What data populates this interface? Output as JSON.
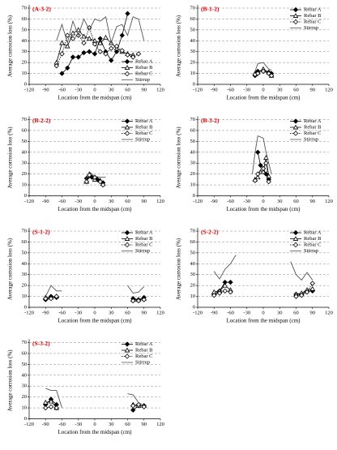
{
  "chart_data": [
    {
      "type": "line",
      "title": "(A-3-2)",
      "xlabel": "Location from the midspan (cm)",
      "ylabel": "Average corrosion loss (%)",
      "xlim": [
        -120,
        120
      ],
      "xticks": [
        -120,
        -90,
        -60,
        -30,
        0,
        30,
        60,
        90,
        120
      ],
      "ylim": [
        0,
        70
      ],
      "yticks": [
        0,
        10,
        20,
        30,
        40,
        50,
        60,
        70
      ],
      "grid": true,
      "legend": "lower right",
      "series": [
        {
          "name": "Rebar A",
          "color": "#000000",
          "marker": "filled-diamond",
          "x": [
            -60,
            -50,
            -40,
            -30,
            -20,
            -10,
            0,
            10,
            20,
            30,
            40,
            50,
            60
          ],
          "values": [
            10,
            15,
            25,
            25,
            29,
            30,
            28,
            42,
            30,
            22,
            30,
            45,
            65
          ]
        },
        {
          "name": "Rebar B",
          "color": "#000000",
          "marker": "open-triangle",
          "x": [
            -70,
            -60,
            -50,
            -40,
            -30,
            -20,
            -10,
            0,
            10,
            20,
            30,
            40,
            50,
            60,
            70
          ],
          "values": [
            20,
            38,
            35,
            47,
            50,
            44,
            42,
            40,
            38,
            43,
            38,
            33,
            30,
            28,
            27
          ]
        },
        {
          "name": "Rebar C",
          "color": "#000000",
          "marker": "open-diamond",
          "x": [
            -70,
            -60,
            -50,
            -40,
            -30,
            -20,
            -10,
            0,
            10,
            20,
            30,
            40,
            50,
            60,
            70,
            80
          ],
          "values": [
            17,
            28,
            45,
            42,
            45,
            38,
            52,
            37,
            30,
            28,
            33,
            35,
            31,
            27,
            25,
            28
          ]
        },
        {
          "name": "Stirrup",
          "color": "#555555",
          "marker": "none",
          "x": [
            -70,
            -60,
            -50,
            -40,
            -30,
            -20,
            -10,
            0,
            10,
            20,
            30,
            40,
            50,
            60,
            70,
            80,
            90
          ],
          "values": [
            40,
            55,
            38,
            58,
            45,
            60,
            50,
            60,
            58,
            62,
            38,
            53,
            55,
            45,
            62,
            60,
            40
          ]
        }
      ]
    },
    {
      "type": "line",
      "title": "(B-1-2)",
      "xlabel": "Location from the midspan (cm)",
      "ylabel": "Average corrosion loss (%)",
      "xlim": [
        -120,
        120
      ],
      "xticks": [
        -120,
        -90,
        -60,
        -30,
        0,
        30,
        60,
        90,
        120
      ],
      "ylim": [
        0,
        70
      ],
      "yticks": [
        0,
        10,
        20,
        30,
        40,
        50,
        60,
        70
      ],
      "grid": true,
      "legend": "upper right",
      "series": [
        {
          "name": "Rebar A",
          "color": "#000000",
          "marker": "filled-diamond",
          "x": [
            -15,
            -10,
            0,
            10,
            15
          ],
          "values": [
            8,
            12,
            12,
            11,
            10
          ]
        },
        {
          "name": "Rebar B",
          "color": "#000000",
          "marker": "open-triangle",
          "x": [
            -15,
            -10,
            0,
            10,
            15
          ],
          "values": [
            10,
            11,
            14,
            11,
            8
          ]
        },
        {
          "name": "Rebar C",
          "color": "#000000",
          "marker": "open-diamond",
          "x": [
            -15,
            -10,
            0,
            10,
            15
          ],
          "values": [
            9,
            10,
            12,
            10,
            8
          ]
        },
        {
          "name": "Stirrup",
          "color": "#555555",
          "marker": "none",
          "x": [
            -15,
            -10,
            0,
            10,
            15
          ],
          "values": [
            12,
            19,
            20,
            14,
            13
          ]
        }
      ]
    },
    {
      "type": "line",
      "title": "(B-2-2)",
      "xlabel": "Location from the midspan (cm)",
      "ylabel": "Average corrosion loss (%)",
      "xlim": [
        -120,
        120
      ],
      "xticks": [
        -120,
        -90,
        -60,
        -30,
        0,
        30,
        60,
        90,
        120
      ],
      "ylim": [
        0,
        70
      ],
      "yticks": [
        0,
        10,
        20,
        30,
        40,
        50,
        60,
        70
      ],
      "grid": true,
      "legend": "upper right",
      "series": [
        {
          "name": "Rebar A",
          "color": "#000000",
          "marker": "filled-diamond",
          "x": [
            -15,
            -5,
            5,
            15
          ],
          "values": [
            16,
            17,
            15,
            12
          ]
        },
        {
          "name": "Rebar B",
          "color": "#000000",
          "marker": "open-triangle",
          "x": [
            -15,
            -10,
            0,
            10,
            15
          ],
          "values": [
            13,
            20,
            15,
            14,
            11
          ]
        },
        {
          "name": "Rebar C",
          "color": "#000000",
          "marker": "open-diamond",
          "x": [
            -15,
            -10,
            0,
            10,
            15
          ],
          "values": [
            13,
            19,
            17,
            13,
            10
          ]
        },
        {
          "name": "Stirrup",
          "color": "#555555",
          "marker": "none",
          "x": [
            -20,
            -10,
            0,
            10,
            20
          ],
          "values": [
            11,
            22,
            18,
            17,
            17
          ]
        }
      ]
    },
    {
      "type": "line",
      "title": "(B-3-2)",
      "xlabel": "Location from the midspan (cm)",
      "ylabel": "Average corrosion loss (%)",
      "xlim": [
        -120,
        120
      ],
      "xticks": [
        -120,
        -90,
        -60,
        -30,
        0,
        30,
        60,
        90,
        120
      ],
      "ylim": [
        0,
        70
      ],
      "yticks": [
        0,
        10,
        20,
        30,
        40,
        50,
        60,
        70
      ],
      "grid": true,
      "legend": "upper right",
      "series": [
        {
          "name": "Rebar A",
          "color": "#000000",
          "marker": "filled-diamond",
          "x": [
            -10,
            -5,
            0,
            5,
            10
          ],
          "values": [
            40,
            28,
            25,
            20,
            15
          ]
        },
        {
          "name": "Rebar B",
          "color": "#000000",
          "marker": "open-triangle",
          "x": [
            -15,
            -10,
            -5,
            0,
            5,
            10
          ],
          "values": [
            15,
            17,
            22,
            22,
            35,
            18
          ]
        },
        {
          "name": "Rebar C",
          "color": "#000000",
          "marker": "open-diamond",
          "x": [
            -15,
            -10,
            0,
            5,
            10
          ],
          "values": [
            14,
            20,
            25,
            30,
            13
          ]
        },
        {
          "name": "Stirrup",
          "color": "#555555",
          "marker": "none",
          "x": [
            -20,
            -15,
            -10,
            0,
            5,
            10,
            15
          ],
          "values": [
            20,
            40,
            55,
            53,
            40,
            30,
            20
          ]
        }
      ]
    },
    {
      "type": "line",
      "title": "(S-1-2)",
      "xlabel": "Location from the midspan (cm)",
      "ylabel": "Average corrosion loss (%)",
      "xlim": [
        -120,
        120
      ],
      "xticks": [
        -120,
        -90,
        -60,
        -30,
        0,
        30,
        60,
        90,
        120
      ],
      "ylim": [
        0,
        70
      ],
      "yticks": [
        0,
        10,
        20,
        30,
        40,
        50,
        60,
        70
      ],
      "grid": true,
      "legend": "upper right",
      "series": [
        {
          "name": "Rebar A",
          "color": "#000000",
          "marker": "filled-diamond",
          "x": [
            -90,
            -80,
            -70,
            0,
            70,
            80,
            90
          ],
          "values": [
            7,
            10,
            9,
            null,
            8,
            7,
            9
          ]
        },
        {
          "name": "Rebar B",
          "color": "#000000",
          "marker": "open-triangle",
          "x": [
            -90,
            -80,
            -70,
            0,
            70,
            80,
            90
          ],
          "values": [
            9,
            9,
            10,
            null,
            7,
            7,
            8
          ]
        },
        {
          "name": "Rebar C",
          "color": "#000000",
          "marker": "open-diamond",
          "x": [
            -90,
            -80,
            -70,
            0,
            70,
            80,
            90
          ],
          "values": [
            8,
            8,
            10,
            null,
            6,
            6,
            7
          ]
        },
        {
          "name": "Stirrup",
          "color": "#555555",
          "marker": "none",
          "x": [
            -90,
            -80,
            -70,
            -60,
            0,
            60,
            70,
            80,
            90
          ],
          "values": [
            10,
            20,
            15,
            15,
            null,
            20,
            13,
            14,
            19
          ]
        }
      ]
    },
    {
      "type": "line",
      "title": "(S-2-2)",
      "xlabel": "Location from the midspan (cm)",
      "ylabel": "Average corrosion loss (%)",
      "xlim": [
        -120,
        120
      ],
      "xticks": [
        -120,
        -90,
        -60,
        -30,
        0,
        30,
        60,
        90,
        120
      ],
      "ylim": [
        0,
        70
      ],
      "yticks": [
        0,
        10,
        20,
        30,
        40,
        50,
        60,
        70
      ],
      "grid": true,
      "legend": "upper right",
      "series": [
        {
          "name": "Rebar A",
          "color": "#000000",
          "marker": "filled-diamond",
          "x": [
            -90,
            -80,
            -70,
            -60,
            0,
            60,
            70,
            80,
            90
          ],
          "values": [
            12,
            15,
            23,
            23,
            null,
            12,
            12,
            15,
            15
          ]
        },
        {
          "name": "Rebar B",
          "color": "#000000",
          "marker": "open-triangle",
          "x": [
            -90,
            -80,
            -70,
            -60,
            0,
            60,
            70,
            80,
            90
          ],
          "values": [
            14,
            15,
            20,
            16,
            null,
            12,
            13,
            16,
            17
          ]
        },
        {
          "name": "Rebar C",
          "color": "#000000",
          "marker": "open-diamond",
          "x": [
            -90,
            -80,
            -70,
            -60,
            0,
            60,
            70,
            80,
            90
          ],
          "values": [
            11,
            13,
            15,
            14,
            null,
            10,
            11,
            14,
            22
          ]
        },
        {
          "name": "Stirrup",
          "color": "#555555",
          "marker": "none",
          "x": [
            -90,
            -80,
            -70,
            -60,
            -50,
            0,
            50,
            60,
            70,
            80,
            90
          ],
          "values": [
            33,
            26,
            35,
            40,
            48,
            null,
            42,
            30,
            25,
            32,
            25
          ]
        }
      ]
    },
    {
      "type": "line",
      "title": "(S-3-2)",
      "xlabel": "Location from the midspan (cm)",
      "ylabel": "Average corrosion loss (%)",
      "xlim": [
        -120,
        120
      ],
      "xticks": [
        -120,
        -90,
        -60,
        -30,
        0,
        30,
        60,
        90,
        120
      ],
      "ylim": [
        0,
        70
      ],
      "yticks": [
        0,
        10,
        20,
        30,
        40,
        50,
        60,
        70
      ],
      "grid": true,
      "legend": "upper right",
      "series": [
        {
          "name": "Rebar A",
          "color": "#000000",
          "marker": "filled-diamond",
          "x": [
            -90,
            -80,
            -70,
            0,
            70,
            80,
            90
          ],
          "values": [
            13,
            18,
            13,
            null,
            8,
            12,
            12
          ]
        },
        {
          "name": "Rebar B",
          "color": "#000000",
          "marker": "open-triangle",
          "x": [
            -90,
            -80,
            -70,
            0,
            70,
            80,
            90
          ],
          "values": [
            15,
            16,
            10,
            null,
            13,
            12,
            12
          ]
        },
        {
          "name": "Rebar C",
          "color": "#000000",
          "marker": "open-diamond",
          "x": [
            -90,
            -80,
            -70,
            0,
            70,
            80,
            90
          ],
          "values": [
            10,
            11,
            10,
            null,
            12,
            13,
            11
          ]
        },
        {
          "name": "Stirrup",
          "color": "#555555",
          "marker": "none",
          "x": [
            -90,
            -80,
            -70,
            -60,
            0,
            60,
            70,
            80,
            90
          ],
          "values": [
            28,
            26,
            26,
            10,
            null,
            23,
            22,
            15,
            12
          ]
        }
      ]
    }
  ]
}
